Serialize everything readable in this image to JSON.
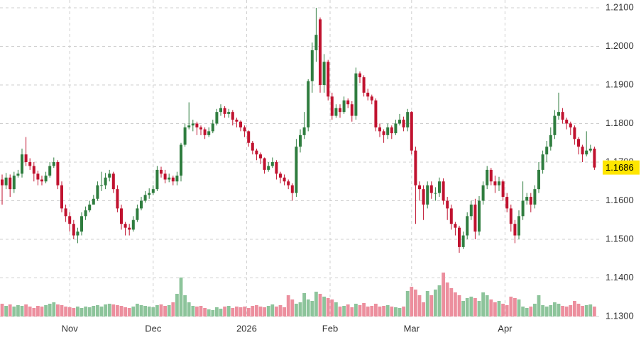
{
  "chart_data": {
    "type": "candlestick",
    "open": [
      1.1655,
      1.164,
      1.166,
      1.163,
      1.1665,
      1.167,
      1.172,
      1.17,
      1.169,
      1.167,
      1.1655,
      1.165,
      1.1665,
      1.169,
      1.17,
      1.164,
      1.158,
      1.156,
      1.154,
      1.151,
      1.152,
      1.156,
      1.1575,
      1.159,
      1.1605,
      1.164,
      1.164,
      1.166,
      1.167,
      1.163,
      1.158,
      1.154,
      1.153,
      1.1525,
      1.155,
      1.158,
      1.16,
      1.1615,
      1.162,
      1.163,
      1.168,
      1.167,
      1.1655,
      1.166,
      1.165,
      1.1665,
      1.1745,
      1.179,
      1.1795,
      1.18,
      1.179,
      1.1785,
      1.177,
      1.178,
      1.18,
      1.183,
      1.184,
      1.1825,
      1.183,
      1.181,
      1.1805,
      1.179,
      1.178,
      1.175,
      1.173,
      1.172,
      1.171,
      1.168,
      1.169,
      1.17,
      1.167,
      1.166,
      1.165,
      1.164,
      1.162,
      1.174,
      1.177,
      1.179,
      1.191,
      1.199,
      1.207,
      1.19,
      1.196,
      1.187,
      1.182,
      1.184,
      1.183,
      1.186,
      1.185,
      1.182,
      1.193,
      1.192,
      1.188,
      1.187,
      1.186,
      1.179,
      1.178,
      1.177,
      1.179,
      1.1775,
      1.18,
      1.181,
      1.179,
      1.183,
      1.173,
      1.164,
      1.163,
      1.159,
      1.164,
      1.162,
      1.162,
      1.165,
      1.16,
      1.158,
      1.154,
      1.153,
      1.148,
      1.151,
      1.156,
      1.159,
      1.152,
      1.16,
      1.164,
      1.168,
      1.165,
      1.164,
      1.165,
      1.161,
      1.158,
      1.154,
      1.151,
      1.156,
      1.16,
      1.161,
      1.159,
      1.163,
      1.168,
      1.172,
      1.174,
      1.177,
      1.182,
      1.183,
      1.181,
      1.18,
      1.179,
      1.176,
      1.174,
      1.172,
      1.173,
      1.1735
    ],
    "high": [
      1.1668,
      1.1672,
      1.1668,
      1.1675,
      1.168,
      1.1735,
      1.1765,
      1.171,
      1.17,
      1.1678,
      1.1665,
      1.1675,
      1.17,
      1.1712,
      1.1705,
      1.165,
      1.159,
      1.157,
      1.155,
      1.153,
      1.157,
      1.1585,
      1.16,
      1.1615,
      1.165,
      1.1675,
      1.1672,
      1.168,
      1.1675,
      1.164,
      1.159,
      1.1545,
      1.154,
      1.156,
      1.159,
      1.161,
      1.1625,
      1.1632,
      1.164,
      1.169,
      1.1688,
      1.168,
      1.167,
      1.1665,
      1.1675,
      1.175,
      1.18,
      1.1855,
      1.181,
      1.1805,
      1.1795,
      1.179,
      1.179,
      1.181,
      1.1838,
      1.185,
      1.1845,
      1.1838,
      1.1835,
      1.1815,
      1.1808,
      1.1795,
      1.1782,
      1.1755,
      1.1735,
      1.1725,
      1.1712,
      1.17,
      1.1712,
      1.1705,
      1.1675,
      1.1668,
      1.1655,
      1.1645,
      1.176,
      1.1785,
      1.183,
      1.1915,
      1.201,
      1.21,
      1.2075,
      1.198,
      1.1965,
      1.188,
      1.185,
      1.185,
      1.187,
      1.1865,
      1.1858,
      1.1945,
      1.1935,
      1.1925,
      1.189,
      1.1875,
      1.1865,
      1.18,
      1.1785,
      1.18,
      1.1795,
      1.181,
      1.1825,
      1.1818,
      1.1838,
      1.1832,
      1.174,
      1.165,
      1.164,
      1.165,
      1.165,
      1.1635,
      1.166,
      1.1658,
      1.161,
      1.159,
      1.1545,
      1.1535,
      1.152,
      1.157,
      1.16,
      1.1605,
      1.1612,
      1.165,
      1.169,
      1.1685,
      1.1665,
      1.1662,
      1.1655,
      1.162,
      1.159,
      1.155,
      1.1575,
      1.165,
      1.162,
      1.162,
      1.164,
      1.17,
      1.173,
      1.1755,
      1.179,
      1.1835,
      1.188,
      1.184,
      1.1815,
      1.1805,
      1.1795,
      1.1765,
      1.1745,
      1.178,
      1.1745,
      1.174
    ],
    "low": [
      1.159,
      1.163,
      1.161,
      1.162,
      1.166,
      1.166,
      1.169,
      1.168,
      1.165,
      1.164,
      1.164,
      1.1645,
      1.166,
      1.1685,
      1.163,
      1.157,
      1.1545,
      1.152,
      1.15,
      1.149,
      1.151,
      1.155,
      1.157,
      1.159,
      1.16,
      1.1625,
      1.163,
      1.165,
      1.162,
      1.157,
      1.1525,
      1.151,
      1.151,
      1.152,
      1.1545,
      1.1575,
      1.1595,
      1.1605,
      1.1615,
      1.1625,
      1.166,
      1.1645,
      1.1648,
      1.164,
      1.164,
      1.165,
      1.174,
      1.1785,
      1.178,
      1.177,
      1.177,
      1.176,
      1.1765,
      1.1775,
      1.1795,
      1.182,
      1.1815,
      1.1815,
      1.1795,
      1.179,
      1.178,
      1.1765,
      1.174,
      1.172,
      1.1705,
      1.1695,
      1.167,
      1.1675,
      1.1685,
      1.1655,
      1.1645,
      1.164,
      1.163,
      1.16,
      1.161,
      1.1725,
      1.176,
      1.178,
      1.188,
      1.196,
      1.188,
      1.188,
      1.186,
      1.181,
      1.1815,
      1.1815,
      1.1825,
      1.184,
      1.1805,
      1.181,
      1.1905,
      1.187,
      1.186,
      1.185,
      1.178,
      1.1765,
      1.175,
      1.176,
      1.176,
      1.177,
      1.1795,
      1.178,
      1.178,
      1.172,
      1.154,
      1.16,
      1.155,
      1.158,
      1.1605,
      1.16,
      1.161,
      1.159,
      1.155,
      1.1525,
      1.151,
      1.1465,
      1.1475,
      1.15,
      1.155,
      1.15,
      1.151,
      1.159,
      1.163,
      1.164,
      1.162,
      1.1625,
      1.16,
      1.157,
      1.152,
      1.149,
      1.15,
      1.155,
      1.159,
      1.157,
      1.158,
      1.162,
      1.167,
      1.17,
      1.173,
      1.176,
      1.181,
      1.18,
      1.1785,
      1.177,
      1.1745,
      1.172,
      1.17,
      1.1715,
      1.1725,
      1.168
    ],
    "close": [
      1.164,
      1.166,
      1.163,
      1.1665,
      1.167,
      1.172,
      1.17,
      1.169,
      1.167,
      1.1655,
      1.165,
      1.1665,
      1.169,
      1.17,
      1.164,
      1.158,
      1.156,
      1.154,
      1.151,
      1.152,
      1.156,
      1.1575,
      1.159,
      1.1605,
      1.164,
      1.164,
      1.166,
      1.167,
      1.163,
      1.158,
      1.154,
      1.153,
      1.1525,
      1.155,
      1.158,
      1.16,
      1.1615,
      1.162,
      1.163,
      1.168,
      1.167,
      1.1655,
      1.166,
      1.165,
      1.1665,
      1.1745,
      1.179,
      1.1795,
      1.18,
      1.179,
      1.1785,
      1.177,
      1.178,
      1.18,
      1.183,
      1.184,
      1.1825,
      1.183,
      1.181,
      1.1805,
      1.179,
      1.178,
      1.175,
      1.173,
      1.172,
      1.171,
      1.168,
      1.169,
      1.17,
      1.167,
      1.166,
      1.165,
      1.164,
      1.162,
      1.174,
      1.177,
      1.179,
      1.191,
      1.199,
      1.203,
      1.19,
      1.196,
      1.187,
      1.182,
      1.184,
      1.183,
      1.186,
      1.185,
      1.182,
      1.193,
      1.192,
      1.188,
      1.187,
      1.186,
      1.179,
      1.178,
      1.177,
      1.179,
      1.1775,
      1.18,
      1.181,
      1.179,
      1.183,
      1.173,
      1.164,
      1.163,
      1.159,
      1.164,
      1.162,
      1.162,
      1.165,
      1.16,
      1.158,
      1.154,
      1.153,
      1.148,
      1.151,
      1.156,
      1.159,
      1.152,
      1.16,
      1.164,
      1.168,
      1.165,
      1.164,
      1.165,
      1.161,
      1.158,
      1.154,
      1.151,
      1.156,
      1.16,
      1.161,
      1.159,
      1.163,
      1.168,
      1.172,
      1.174,
      1.177,
      1.182,
      1.183,
      1.181,
      1.18,
      1.179,
      1.176,
      1.174,
      1.172,
      1.173,
      1.1735,
      1.1686
    ],
    "volume": [
      18,
      15,
      17,
      14,
      16,
      15,
      17,
      14,
      12,
      15,
      14,
      16,
      18,
      20,
      17,
      16,
      14,
      13,
      12,
      14,
      12,
      14,
      13,
      15,
      16,
      14,
      17,
      18,
      17,
      16,
      15,
      13,
      12,
      14,
      18,
      16,
      15,
      14,
      13,
      16,
      17,
      15,
      16,
      20,
      32,
      55,
      30,
      20,
      15,
      14,
      15,
      12,
      10,
      9,
      13,
      11,
      14,
      15,
      12,
      14,
      13,
      14,
      12,
      15,
      16,
      14,
      13,
      15,
      17,
      14,
      16,
      13,
      30,
      24,
      18,
      20,
      33,
      24,
      22,
      35,
      32,
      28,
      26,
      24,
      20,
      14,
      15,
      17,
      13,
      18,
      16,
      19,
      14,
      15,
      18,
      14,
      15,
      16,
      14,
      13,
      12,
      14,
      36,
      42,
      38,
      30,
      20,
      36,
      30,
      38,
      44,
      62,
      48,
      40,
      34,
      30,
      22,
      26,
      28,
      26,
      22,
      34,
      30,
      24,
      20,
      22,
      18,
      16,
      28,
      26,
      24,
      14,
      12,
      14,
      18,
      30,
      16,
      14,
      16,
      20,
      18,
      15,
      14,
      16,
      22,
      18,
      15,
      16,
      17,
      14
    ],
    "up_color": "#2f7d3f",
    "down_color": "#c0122f",
    "volume_up_color": "#8dc49b",
    "volume_down_color": "#ec8f9e",
    "ylim": [
      1.13,
      1.21
    ],
    "yticks": [
      {
        "value": 1.13,
        "label": "1.1300"
      },
      {
        "value": 1.14,
        "label": "1.1400"
      },
      {
        "value": 1.15,
        "label": "1.1500"
      },
      {
        "value": 1.16,
        "label": "1.1600"
      },
      {
        "value": 1.17,
        "label": "1.1700"
      },
      {
        "value": 1.18,
        "label": "1.1800"
      },
      {
        "value": 1.19,
        "label": "1.1900"
      },
      {
        "value": 1.2,
        "label": "1.2000"
      },
      {
        "value": 1.21,
        "label": "1.2100"
      }
    ],
    "xticks": [
      {
        "value": 17,
        "label": "Nov"
      },
      {
        "value": 38,
        "label": "Dec"
      },
      {
        "value": 61.5,
        "label": "2026"
      },
      {
        "value": 82.5,
        "label": "Feb"
      },
      {
        "value": 103,
        "label": "Mar"
      },
      {
        "value": 126.5,
        "label": "Apr"
      }
    ],
    "last_price": {
      "value": 1.1686,
      "label": "1.1686"
    },
    "last_price_color": "#ffe600",
    "grid": true
  }
}
